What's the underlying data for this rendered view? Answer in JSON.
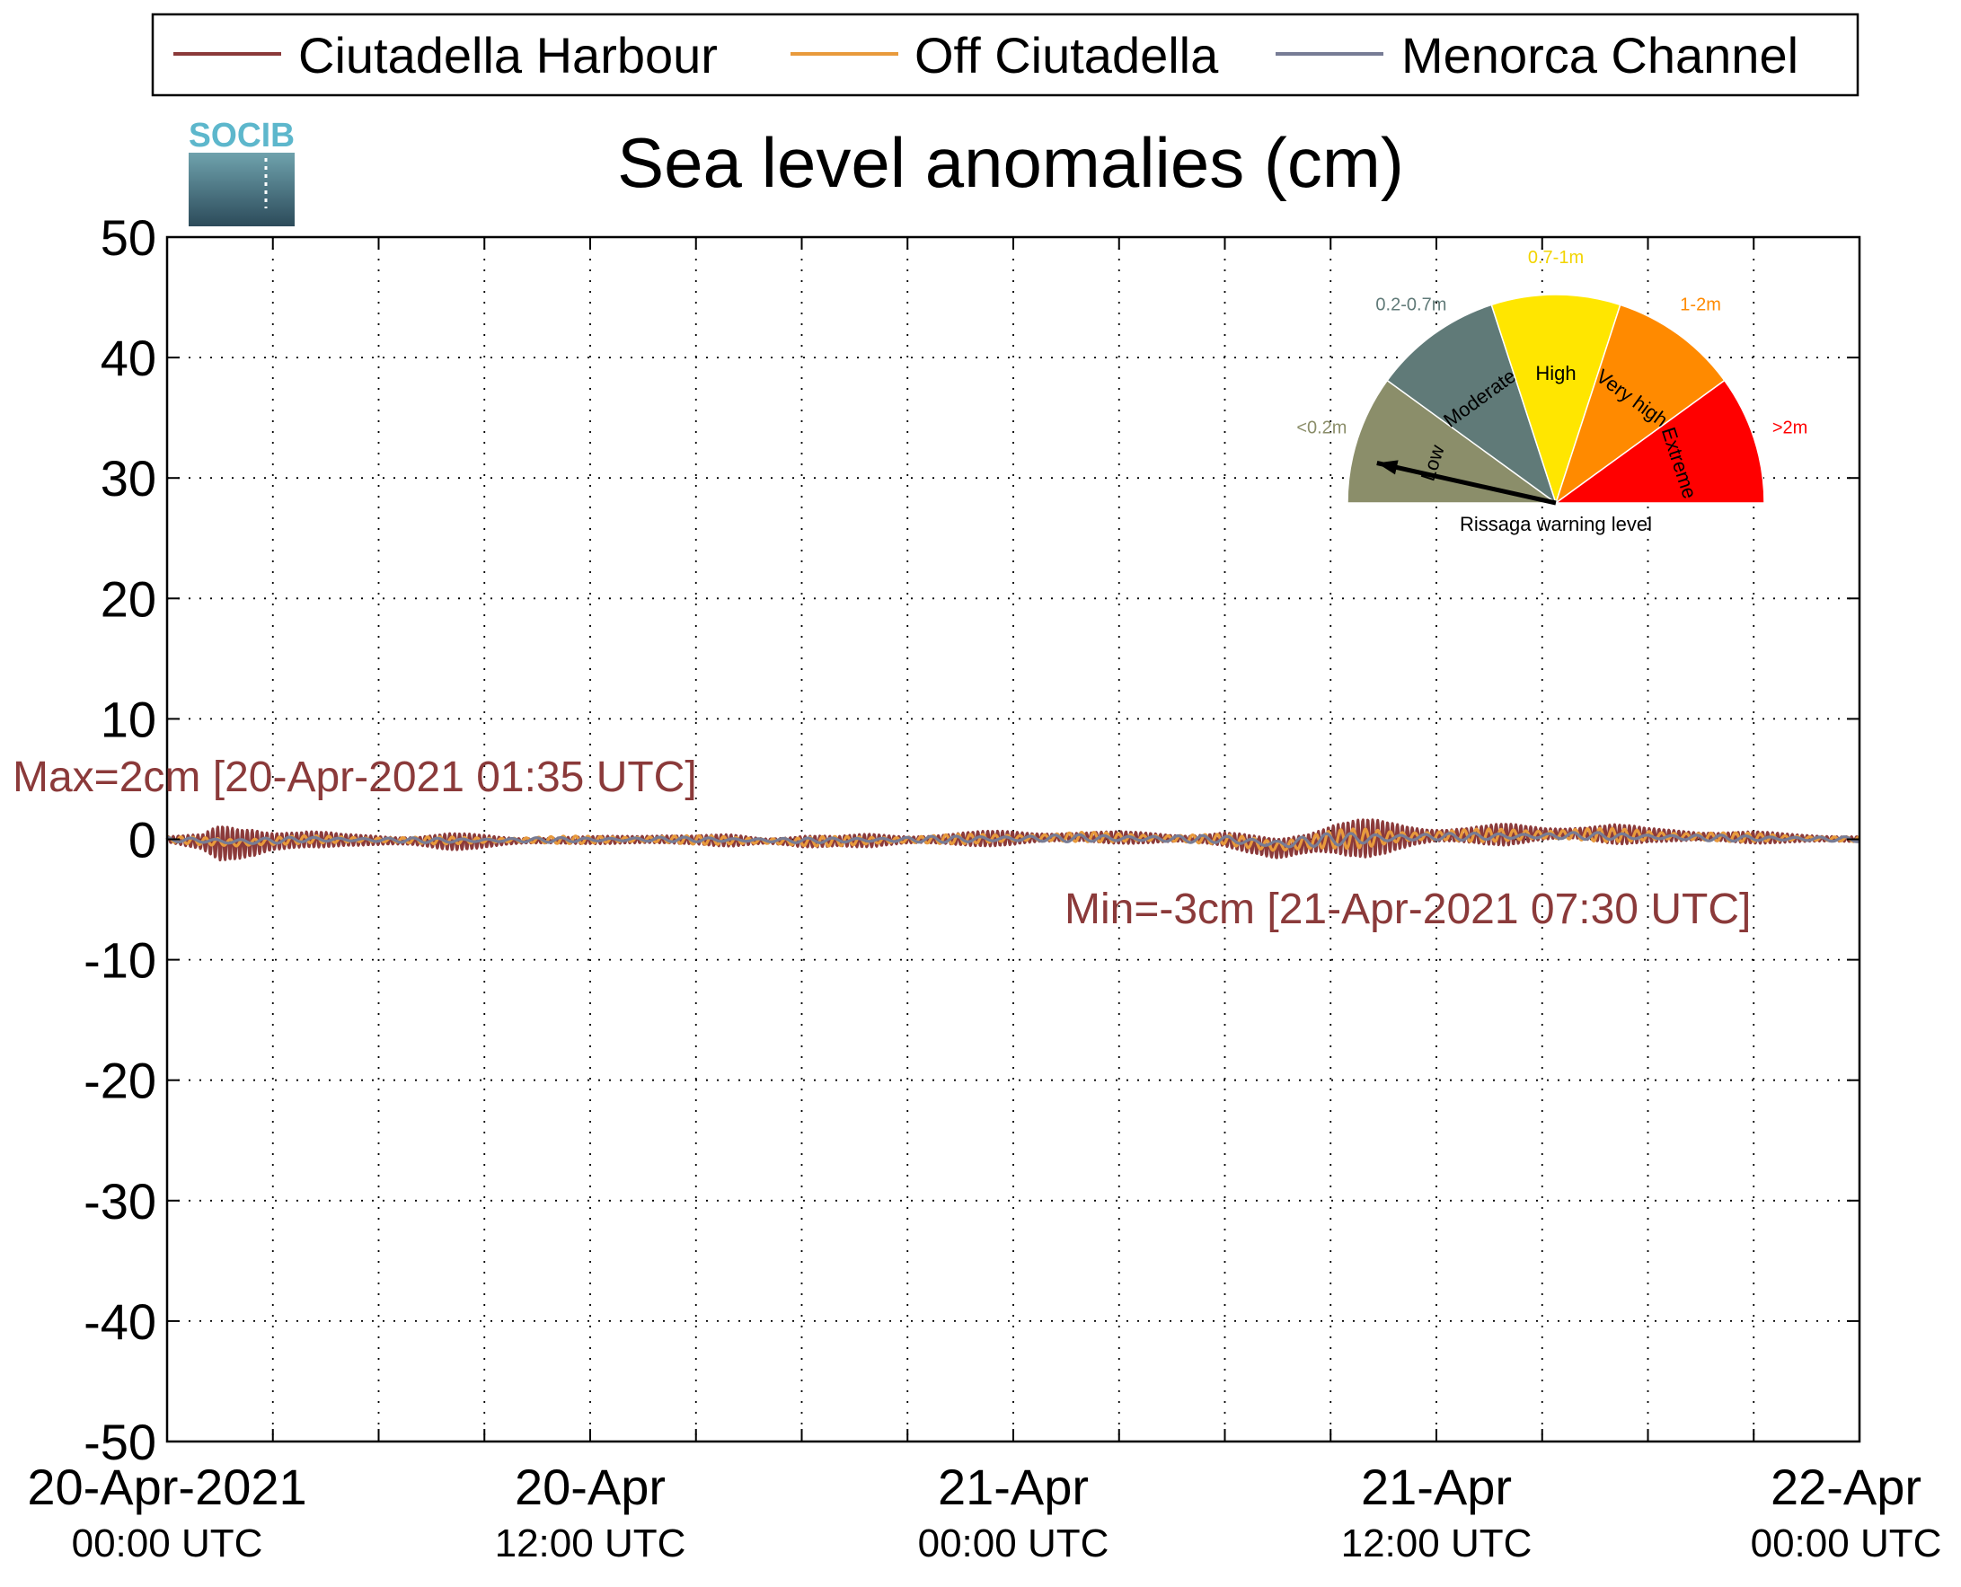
{
  "chart_data": {
    "type": "line",
    "title": "Sea level anomalies (cm)",
    "xlabel": "",
    "ylabel": "",
    "xlim_hours": [
      0,
      48
    ],
    "ylim": [
      -50,
      50
    ],
    "y_ticks": [
      50,
      40,
      30,
      20,
      10,
      0,
      -10,
      -20,
      -30,
      -40,
      -50
    ],
    "x_ticks": [
      {
        "hour": 0,
        "line1": "20-Apr-2021",
        "line2": "00:00 UTC"
      },
      {
        "hour": 12,
        "line1": "20-Apr",
        "line2": "12:00 UTC"
      },
      {
        "hour": 24,
        "line1": "21-Apr",
        "line2": "00:00 UTC"
      },
      {
        "hour": 36,
        "line1": "21-Apr",
        "line2": "12:00 UTC"
      },
      {
        "hour": 48,
        "line1": "22-Apr",
        "line2": "00:00 UTC"
      }
    ],
    "minor_x_every_hours": 3,
    "grid": true,
    "legend_position": "top",
    "series": [
      {
        "name": "Ciutadella Harbour",
        "color": "#8b3a3a",
        "env": [
          [
            0,
            0.3
          ],
          [
            1,
            0.6
          ],
          [
            1.5,
            1.6
          ],
          [
            2.5,
            2.0
          ],
          [
            3,
            1.3
          ],
          [
            3.7,
            0.8
          ],
          [
            5,
            0.5
          ],
          [
            6,
            0.6
          ],
          [
            7,
            0.5
          ],
          [
            8,
            0.7
          ],
          [
            9,
            0.6
          ],
          [
            10,
            0.4
          ],
          [
            11,
            0.3
          ],
          [
            12,
            0.3
          ],
          [
            13,
            0.4
          ],
          [
            14,
            0.6
          ],
          [
            15,
            0.4
          ],
          [
            16,
            0.5
          ],
          [
            17,
            0.3
          ],
          [
            18,
            0.8
          ],
          [
            19,
            0.4
          ],
          [
            20,
            0.6
          ],
          [
            21,
            0.5
          ],
          [
            22,
            0.5
          ],
          [
            23,
            0.6
          ],
          [
            24,
            0.7
          ],
          [
            25,
            0.6
          ],
          [
            26,
            0.4
          ],
          [
            27,
            0.5
          ],
          [
            28,
            0.6
          ],
          [
            29,
            0.4
          ],
          [
            30,
            0.6
          ],
          [
            31,
            0.8
          ],
          [
            32,
            1.4
          ],
          [
            33,
            1.7
          ],
          [
            34,
            1.6
          ],
          [
            35,
            1.2
          ],
          [
            36,
            0.9
          ],
          [
            37,
            0.8
          ],
          [
            38,
            0.9
          ],
          [
            39,
            0.7
          ],
          [
            40,
            0.8
          ],
          [
            41,
            0.9
          ],
          [
            42,
            0.6
          ],
          [
            43,
            0.7
          ],
          [
            44,
            0.5
          ],
          [
            45,
            0.5
          ],
          [
            46,
            0.4
          ],
          [
            47,
            0.4
          ],
          [
            48,
            0.3
          ]
        ],
        "trend": [
          [
            0,
            0
          ],
          [
            2,
            -0.4
          ],
          [
            4,
            0
          ],
          [
            8,
            -0.2
          ],
          [
            14,
            0
          ],
          [
            18,
            -0.2
          ],
          [
            22,
            0
          ],
          [
            26,
            0.2
          ],
          [
            30,
            0
          ],
          [
            31.5,
            -0.8
          ],
          [
            33,
            0
          ],
          [
            36,
            0.3
          ],
          [
            40,
            0.5
          ],
          [
            44,
            0.2
          ],
          [
            48,
            0
          ]
        ],
        "period_hours": 0.14
      },
      {
        "name": "Off Ciutadella",
        "color": "#e89a3c",
        "env": [
          [
            0,
            0.2
          ],
          [
            2,
            0.5
          ],
          [
            4,
            0.3
          ],
          [
            10,
            0.3
          ],
          [
            18,
            0.4
          ],
          [
            24,
            0.4
          ],
          [
            30,
            0.4
          ],
          [
            32,
            0.8
          ],
          [
            34,
            0.8
          ],
          [
            36,
            0.5
          ],
          [
            40,
            0.6
          ],
          [
            44,
            0.4
          ],
          [
            48,
            0.2
          ]
        ],
        "trend": [
          [
            0,
            0
          ],
          [
            2,
            -0.3
          ],
          [
            4,
            0
          ],
          [
            8,
            -0.1
          ],
          [
            14,
            0
          ],
          [
            18,
            -0.2
          ],
          [
            22,
            0
          ],
          [
            26,
            0.2
          ],
          [
            30,
            0
          ],
          [
            31.5,
            -0.6
          ],
          [
            33,
            0
          ],
          [
            36,
            0.3
          ],
          [
            40,
            0.4
          ],
          [
            44,
            0.2
          ],
          [
            48,
            0
          ]
        ],
        "period_hours": 0.35
      },
      {
        "name": "Menorca Channel",
        "color": "#777c95",
        "env": [
          [
            0,
            0.2
          ],
          [
            2,
            0.3
          ],
          [
            4,
            0.2
          ],
          [
            18,
            0.2
          ],
          [
            24,
            0.3
          ],
          [
            30,
            0.3
          ],
          [
            32,
            0.5
          ],
          [
            34,
            0.5
          ],
          [
            36,
            0.3
          ],
          [
            40,
            0.3
          ],
          [
            48,
            0.2
          ]
        ],
        "trend": [
          [
            0,
            0
          ],
          [
            2,
            -0.2
          ],
          [
            4,
            0
          ],
          [
            8,
            -0.1
          ],
          [
            14,
            0
          ],
          [
            18,
            -0.1
          ],
          [
            22,
            0
          ],
          [
            26,
            0.1
          ],
          [
            30,
            0
          ],
          [
            31.5,
            -0.4
          ],
          [
            33,
            0
          ],
          [
            36,
            0.2
          ],
          [
            40,
            0.3
          ],
          [
            44,
            0.1
          ],
          [
            48,
            0
          ]
        ],
        "period_hours": 0.7
      }
    ],
    "annotations": {
      "max_text": "Max=2cm [20-Apr-2021 01:35 UTC]",
      "min_text": "Min=-3cm [21-Apr-2021 07:30 UTC]",
      "color": "#8b3a3a"
    }
  },
  "logo": {
    "text": "SOCIB"
  },
  "gauge": {
    "caption": "Rissaga warning level",
    "needle_level_fraction": 0.07,
    "sectors": [
      {
        "label": "Low",
        "range": "<0.2m",
        "color": "#8b8e6a",
        "range_color": "#8b8e6a"
      },
      {
        "label": "Moderate",
        "range": "0.2-0.7m",
        "color": "#607a78",
        "range_color": "#607a78"
      },
      {
        "label": "High",
        "range": "0.7-1m",
        "color": "#ffe600",
        "range_color": "#f2d400"
      },
      {
        "label": "Very high",
        "range": "1-2m",
        "color": "#ff8a00",
        "range_color": "#ff8a00"
      },
      {
        "label": "Extreme",
        "range": ">2m",
        "color": "#ff0000",
        "range_color": "#ff0000"
      }
    ]
  }
}
